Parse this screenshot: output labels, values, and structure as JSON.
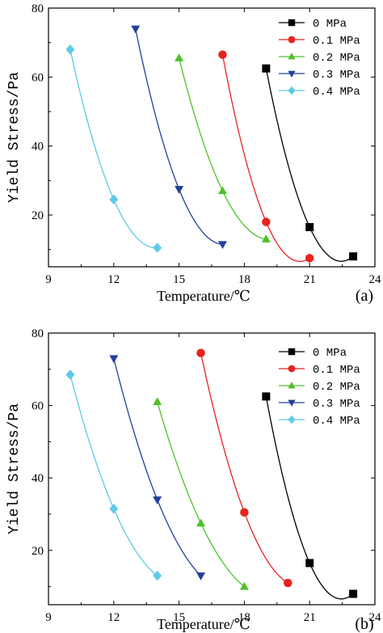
{
  "chart_data": [
    {
      "type": "scatter",
      "panel_label": "(a)",
      "xlabel": "Temperature/℃",
      "ylabel": "Yield Stress/Pa",
      "xlim": [
        9,
        24
      ],
      "ylim": [
        5,
        80
      ],
      "xticks": [
        9,
        12,
        15,
        18,
        21,
        24
      ],
      "yticks": [
        20,
        40,
        60,
        80
      ],
      "legend_position": "top-right",
      "series": [
        {
          "name": "0 MPa",
          "marker": "square",
          "color": "#000000",
          "x": [
            19,
            21,
            23
          ],
          "y": [
            62.5,
            16.5,
            8
          ]
        },
        {
          "name": "0.1 MPa",
          "marker": "circle",
          "color": "#e8231e",
          "x": [
            17,
            19,
            21
          ],
          "y": [
            66.5,
            18,
            7.5
          ]
        },
        {
          "name": "0.2 MPa",
          "marker": "triangle-up",
          "color": "#4fc12a",
          "x": [
            15,
            17,
            19
          ],
          "y": [
            65.5,
            27,
            13
          ]
        },
        {
          "name": "0.3 MPa",
          "marker": "triangle-down",
          "color": "#23409a",
          "x": [
            13,
            15,
            17
          ],
          "y": [
            74,
            27.5,
            11.5
          ]
        },
        {
          "name": "0.4 MPa",
          "marker": "diamond",
          "color": "#5ecae8",
          "x": [
            10,
            12,
            14
          ],
          "y": [
            68,
            24.5,
            10.5
          ]
        }
      ]
    },
    {
      "type": "scatter",
      "panel_label": "(b)",
      "xlabel": "Temperature/℃",
      "ylabel": "Yield Stress/Pa",
      "xlim": [
        9,
        24
      ],
      "ylim": [
        5,
        80
      ],
      "xticks": [
        9,
        12,
        15,
        18,
        21,
        24
      ],
      "yticks": [
        20,
        40,
        60,
        80
      ],
      "legend_position": "top-right",
      "series": [
        {
          "name": "0 MPa",
          "marker": "square",
          "color": "#000000",
          "x": [
            19,
            21,
            23
          ],
          "y": [
            62.5,
            16.5,
            8
          ]
        },
        {
          "name": "0.1 MPa",
          "marker": "circle",
          "color": "#e8231e",
          "x": [
            16,
            18,
            20
          ],
          "y": [
            74.5,
            30.5,
            11
          ]
        },
        {
          "name": "0.2 MPa",
          "marker": "triangle-up",
          "color": "#4fc12a",
          "x": [
            14,
            16,
            18
          ],
          "y": [
            61,
            27.5,
            10
          ]
        },
        {
          "name": "0.3 MPa",
          "marker": "triangle-down",
          "color": "#23409a",
          "x": [
            12,
            14,
            16
          ],
          "y": [
            73,
            34,
            13
          ]
        },
        {
          "name": "0.4 MPa",
          "marker": "diamond",
          "color": "#5ecae8",
          "x": [
            10,
            12,
            14
          ],
          "y": [
            68.5,
            31.5,
            13
          ]
        }
      ]
    }
  ]
}
